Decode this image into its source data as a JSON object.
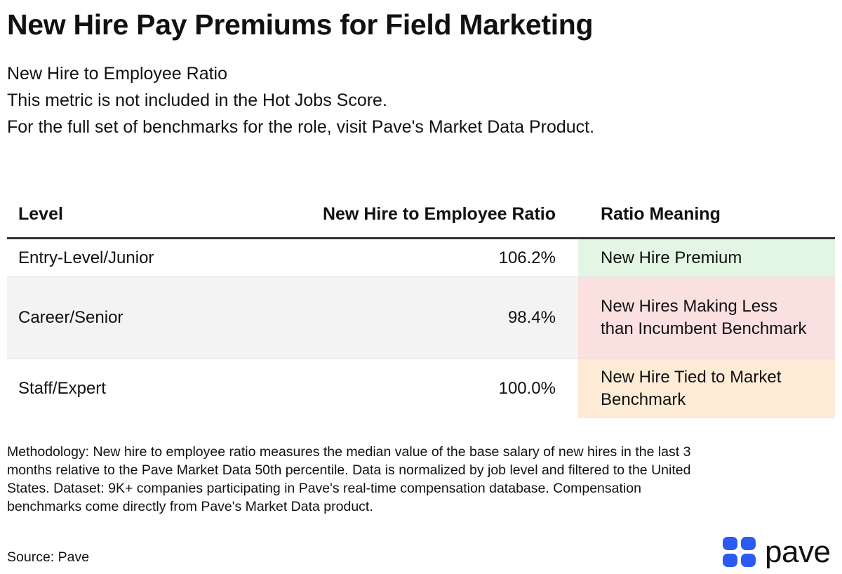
{
  "title": "New Hire Pay Premiums for Field Marketing",
  "subtitle": {
    "line1": "New Hire to Employee Ratio",
    "line2": "This metric is not included in the Hot Jobs Score.",
    "line3": "For the full set of benchmarks for the role, visit Pave's Market Data Product."
  },
  "table": {
    "headers": {
      "level": "Level",
      "ratio": "New Hire to Employee Ratio",
      "meaning": "Ratio Meaning"
    },
    "rows": [
      {
        "level": "Entry-Level/Junior",
        "ratio": "106.2%",
        "meaning": "New Hire Premium",
        "meaning_color": "#e3f5e3"
      },
      {
        "level": "Career/Senior",
        "ratio": "98.4%",
        "meaning": "New Hires Making Less than Incumbent Benchmark",
        "meaning_color": "#fbe0e0"
      },
      {
        "level": "Staff/Expert",
        "ratio": "100.0%",
        "meaning": "New Hire Tied to Market Benchmark",
        "meaning_color": "#fdebd6"
      }
    ]
  },
  "methodology": "Methodology: New hire to employee ratio measures the median value of the base salary of new hires in the last 3 months relative to the Pave Market Data 50th percentile. Data is normalized by job level and filtered to the United States. Dataset: 9K+ companies participating in Pave's real-time compensation database. Compensation benchmarks come directly from Pave's Market Data product.",
  "source": "Source: Pave",
  "logo": {
    "text": "pave",
    "icon": "pave-logo-icon",
    "brand_color": "#2b5bf0"
  }
}
